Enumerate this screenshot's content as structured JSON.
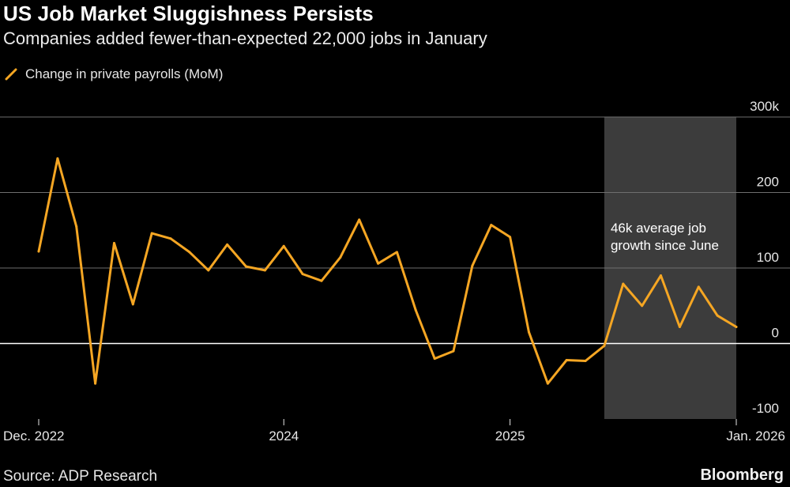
{
  "header": {
    "title": "US Job Market Sluggishness Persists",
    "subtitle": "Companies added fewer-than-expected 22,000 jobs in January"
  },
  "footer": {
    "source": "Source: ADP Research",
    "brand": "Bloomberg"
  },
  "colors": {
    "line": "#f5a623",
    "shade": "#3c3c3c",
    "grid": "#6e6e6e",
    "zero_line": "#ffffff"
  },
  "chart_data": {
    "type": "line",
    "title": "US Job Market Sluggishness Persists",
    "subtitle": "Companies added fewer-than-expected 22,000 jobs in January",
    "xlabel": "",
    "ylabel": "",
    "ylim": [
      -100,
      300
    ],
    "y_ticks": [
      300,
      200,
      100,
      0,
      -100
    ],
    "y_tick_labels": [
      "300k",
      "200",
      "100",
      "0",
      "-100"
    ],
    "x_ticks": [
      "2022-12",
      "2024-01",
      "2025-01",
      "2026-01"
    ],
    "x_tick_labels": [
      "Dec. 2022",
      "2024",
      "2025",
      "Jan. 2026"
    ],
    "grid": true,
    "legend": "top-left",
    "shaded_region": {
      "start": "2025-06",
      "end": "2026-01"
    },
    "annotation": {
      "text_line1": "46k average job",
      "text_line2": "growth since June",
      "at": "2025-06"
    },
    "series": [
      {
        "name": "Change in private payrolls (MoM)",
        "x": [
          "2022-12",
          "2023-01",
          "2023-02",
          "2023-03",
          "2023-04",
          "2023-05",
          "2023-06",
          "2023-07",
          "2023-08",
          "2023-09",
          "2023-10",
          "2023-11",
          "2023-12",
          "2024-01",
          "2024-02",
          "2024-03",
          "2024-04",
          "2024-05",
          "2024-06",
          "2024-07",
          "2024-08",
          "2024-09",
          "2024-10",
          "2024-11",
          "2024-12",
          "2025-01",
          "2025-02",
          "2025-03",
          "2025-04",
          "2025-05",
          "2025-06",
          "2025-07",
          "2025-08",
          "2025-09",
          "2025-10",
          "2025-11",
          "2025-12",
          "2026-01"
        ],
        "values": [
          122,
          245,
          155,
          -53,
          133,
          52,
          146,
          139,
          121,
          97,
          131,
          102,
          97,
          129,
          92,
          83,
          114,
          164,
          106,
          121,
          44,
          -20,
          -10,
          103,
          157,
          141,
          15,
          -53,
          -22,
          -23,
          -3,
          79,
          50,
          90,
          22,
          75,
          37,
          22
        ]
      }
    ]
  }
}
